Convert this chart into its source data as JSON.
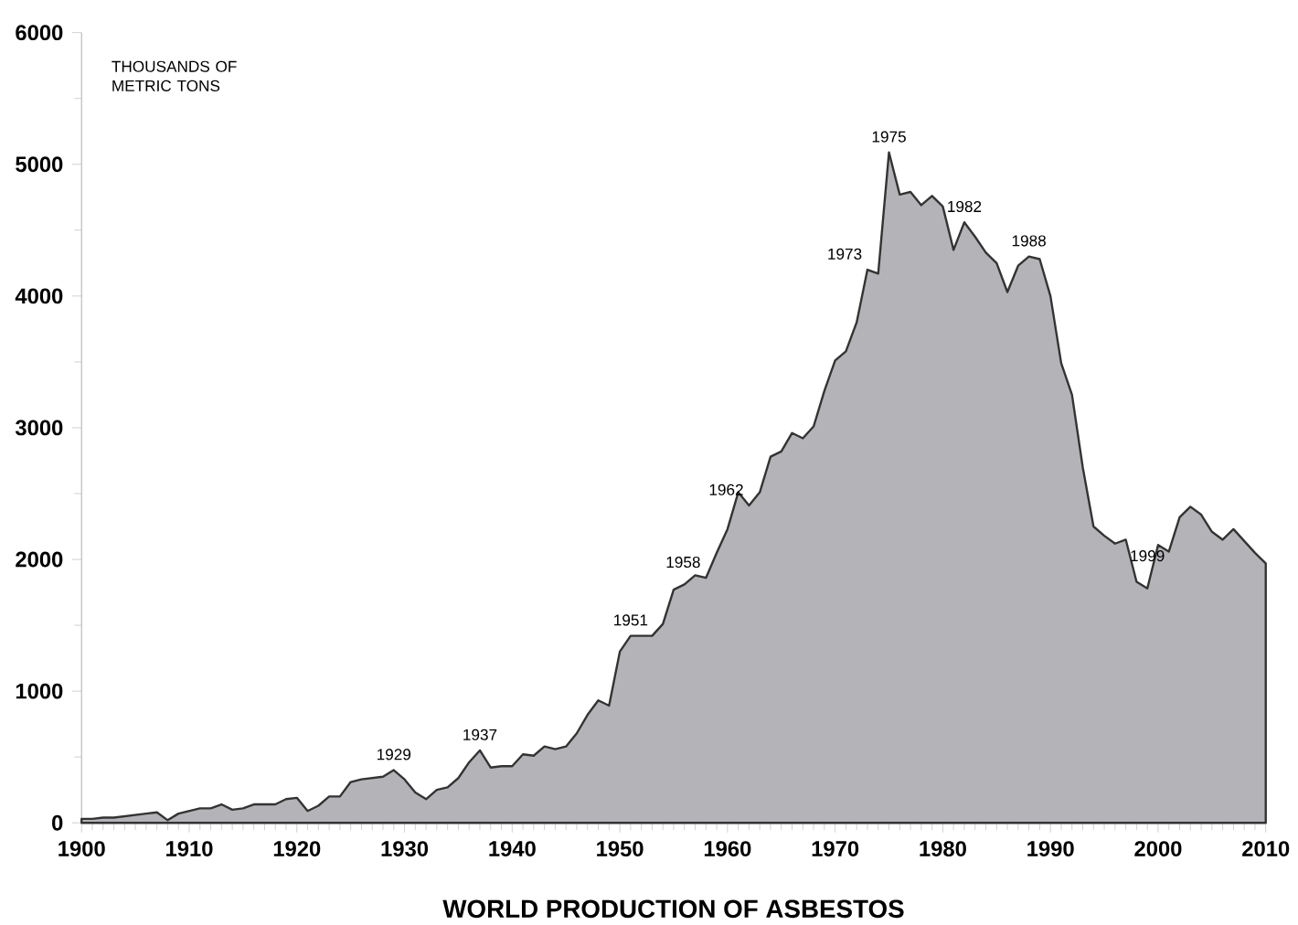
{
  "chart_data": {
    "type": "area",
    "title": "WORLD PRODUCTION OF ASBESTOS",
    "ylabel": "THOUSANDS OF METRIC TONS",
    "x": [
      1900,
      1901,
      1902,
      1903,
      1904,
      1905,
      1906,
      1907,
      1908,
      1909,
      1910,
      1911,
      1912,
      1913,
      1914,
      1915,
      1916,
      1917,
      1918,
      1919,
      1920,
      1921,
      1922,
      1923,
      1924,
      1925,
      1926,
      1927,
      1928,
      1929,
      1930,
      1931,
      1932,
      1933,
      1934,
      1935,
      1936,
      1937,
      1938,
      1939,
      1940,
      1941,
      1942,
      1943,
      1944,
      1945,
      1946,
      1947,
      1948,
      1949,
      1950,
      1951,
      1952,
      1953,
      1954,
      1955,
      1956,
      1957,
      1958,
      1959,
      1960,
      1961,
      1962,
      1963,
      1964,
      1965,
      1966,
      1967,
      1968,
      1969,
      1970,
      1971,
      1972,
      1973,
      1974,
      1975,
      1976,
      1977,
      1978,
      1979,
      1980,
      1981,
      1982,
      1983,
      1984,
      1985,
      1986,
      1987,
      1988,
      1989,
      1990,
      1991,
      1992,
      1993,
      1994,
      1995,
      1996,
      1997,
      1998,
      1999,
      2000,
      2001,
      2002,
      2003,
      2004,
      2005,
      2006,
      2007,
      2008,
      2009,
      2010
    ],
    "series": [
      {
        "color": "#b4b4b8",
        "values": [
          30,
          30,
          40,
          40,
          50,
          60,
          70,
          80,
          20,
          70,
          90,
          110,
          110,
          140,
          100,
          110,
          140,
          140,
          140,
          180,
          190,
          90,
          130,
          200,
          200,
          310,
          330,
          340,
          350,
          400,
          330,
          230,
          180,
          250,
          270,
          340,
          460,
          550,
          420,
          430,
          430,
          520,
          510,
          580,
          560,
          580,
          680,
          820,
          930,
          890,
          1300,
          1420,
          1420,
          1420,
          1510,
          1770,
          1810,
          1880,
          1860,
          2050,
          2230,
          2510,
          2410,
          2510,
          2780,
          2820,
          2960,
          2920,
          3010,
          3280,
          3510,
          3580,
          3800,
          4200,
          4170,
          5090,
          4770,
          4790,
          4690,
          4760,
          4680,
          4350,
          4560,
          4450,
          4330,
          4250,
          4030,
          4230,
          4300,
          4280,
          4000,
          3490,
          3250,
          2700,
          2250,
          2180,
          2120,
          2150,
          1830,
          1780,
          2110,
          2060,
          2320,
          2400,
          2340,
          2210,
          2150,
          2230,
          2140,
          2050,
          1970
        ]
      }
    ],
    "xlim": [
      1900,
      2010
    ],
    "xticks": [
      1900,
      1910,
      1920,
      1930,
      1940,
      1950,
      1960,
      1970,
      1980,
      1990,
      2000,
      2010
    ],
    "ylim": [
      0,
      6000
    ],
    "yticks": [
      0,
      1000,
      2000,
      3000,
      4000,
      5000,
      6000
    ],
    "annotations": [
      {
        "text": "1929",
        "x": 1929,
        "y": 400
      },
      {
        "text": "1937",
        "x": 1937,
        "y": 550
      },
      {
        "text": "1951",
        "x": 1951,
        "y": 1420
      },
      {
        "text": "1958",
        "x": 1958,
        "y": 1860
      },
      {
        "text": "1962",
        "x": 1962,
        "y": 2410
      },
      {
        "text": "1973",
        "x": 1973,
        "y": 4200
      },
      {
        "text": "1975",
        "x": 1975,
        "y": 5090
      },
      {
        "text": "1982",
        "x": 1982,
        "y": 4560
      },
      {
        "text": "1988",
        "x": 1988,
        "y": 4300
      },
      {
        "text": "1999",
        "x": 1999,
        "y": 1780
      }
    ],
    "grid": false
  }
}
